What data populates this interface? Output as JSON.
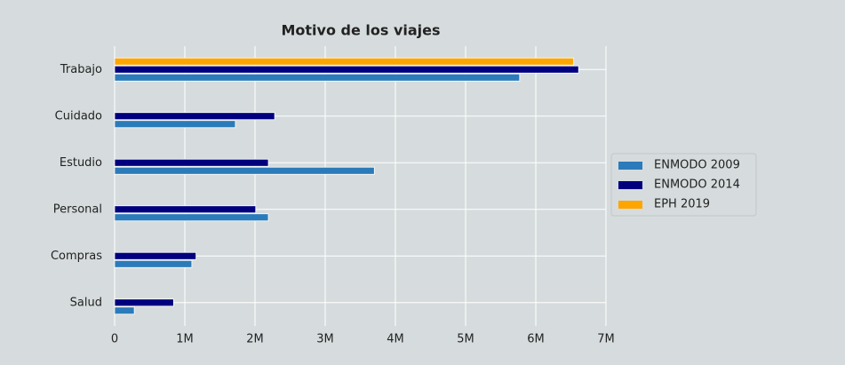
{
  "chart_data": {
    "type": "barh",
    "title": "Motivo de los viajes",
    "categories": [
      "Trabajo",
      "Cuidado",
      "Estudio",
      "Personal",
      "Compras",
      "Salud"
    ],
    "series": [
      {
        "name": "ENMODO 2009",
        "color": "#2b7bba",
        "values": [
          5770000,
          1720000,
          3700000,
          2190000,
          1100000,
          280000
        ]
      },
      {
        "name": "ENMODO 2014",
        "color": "#00007f",
        "values": [
          6610000,
          2280000,
          2190000,
          2010000,
          1160000,
          840000
        ]
      },
      {
        "name": "EPH 2019",
        "color": "#ffa500",
        "values": [
          6540000,
          null,
          null,
          null,
          null,
          null
        ]
      }
    ],
    "xlim": [
      0,
      7000000
    ],
    "xticks": [
      0,
      {
        "value": 1000000,
        "label": "1M"
      },
      {
        "value": 2000000,
        "label": "2M"
      },
      {
        "value": 3000000,
        "label": "3M"
      },
      {
        "value": 4000000,
        "label": "4M"
      },
      {
        "value": 5000000,
        "label": "5M"
      },
      {
        "value": 6000000,
        "label": "6M"
      },
      {
        "value": 7000000,
        "label": "7M"
      }
    ],
    "grid": true,
    "legend": "right"
  }
}
